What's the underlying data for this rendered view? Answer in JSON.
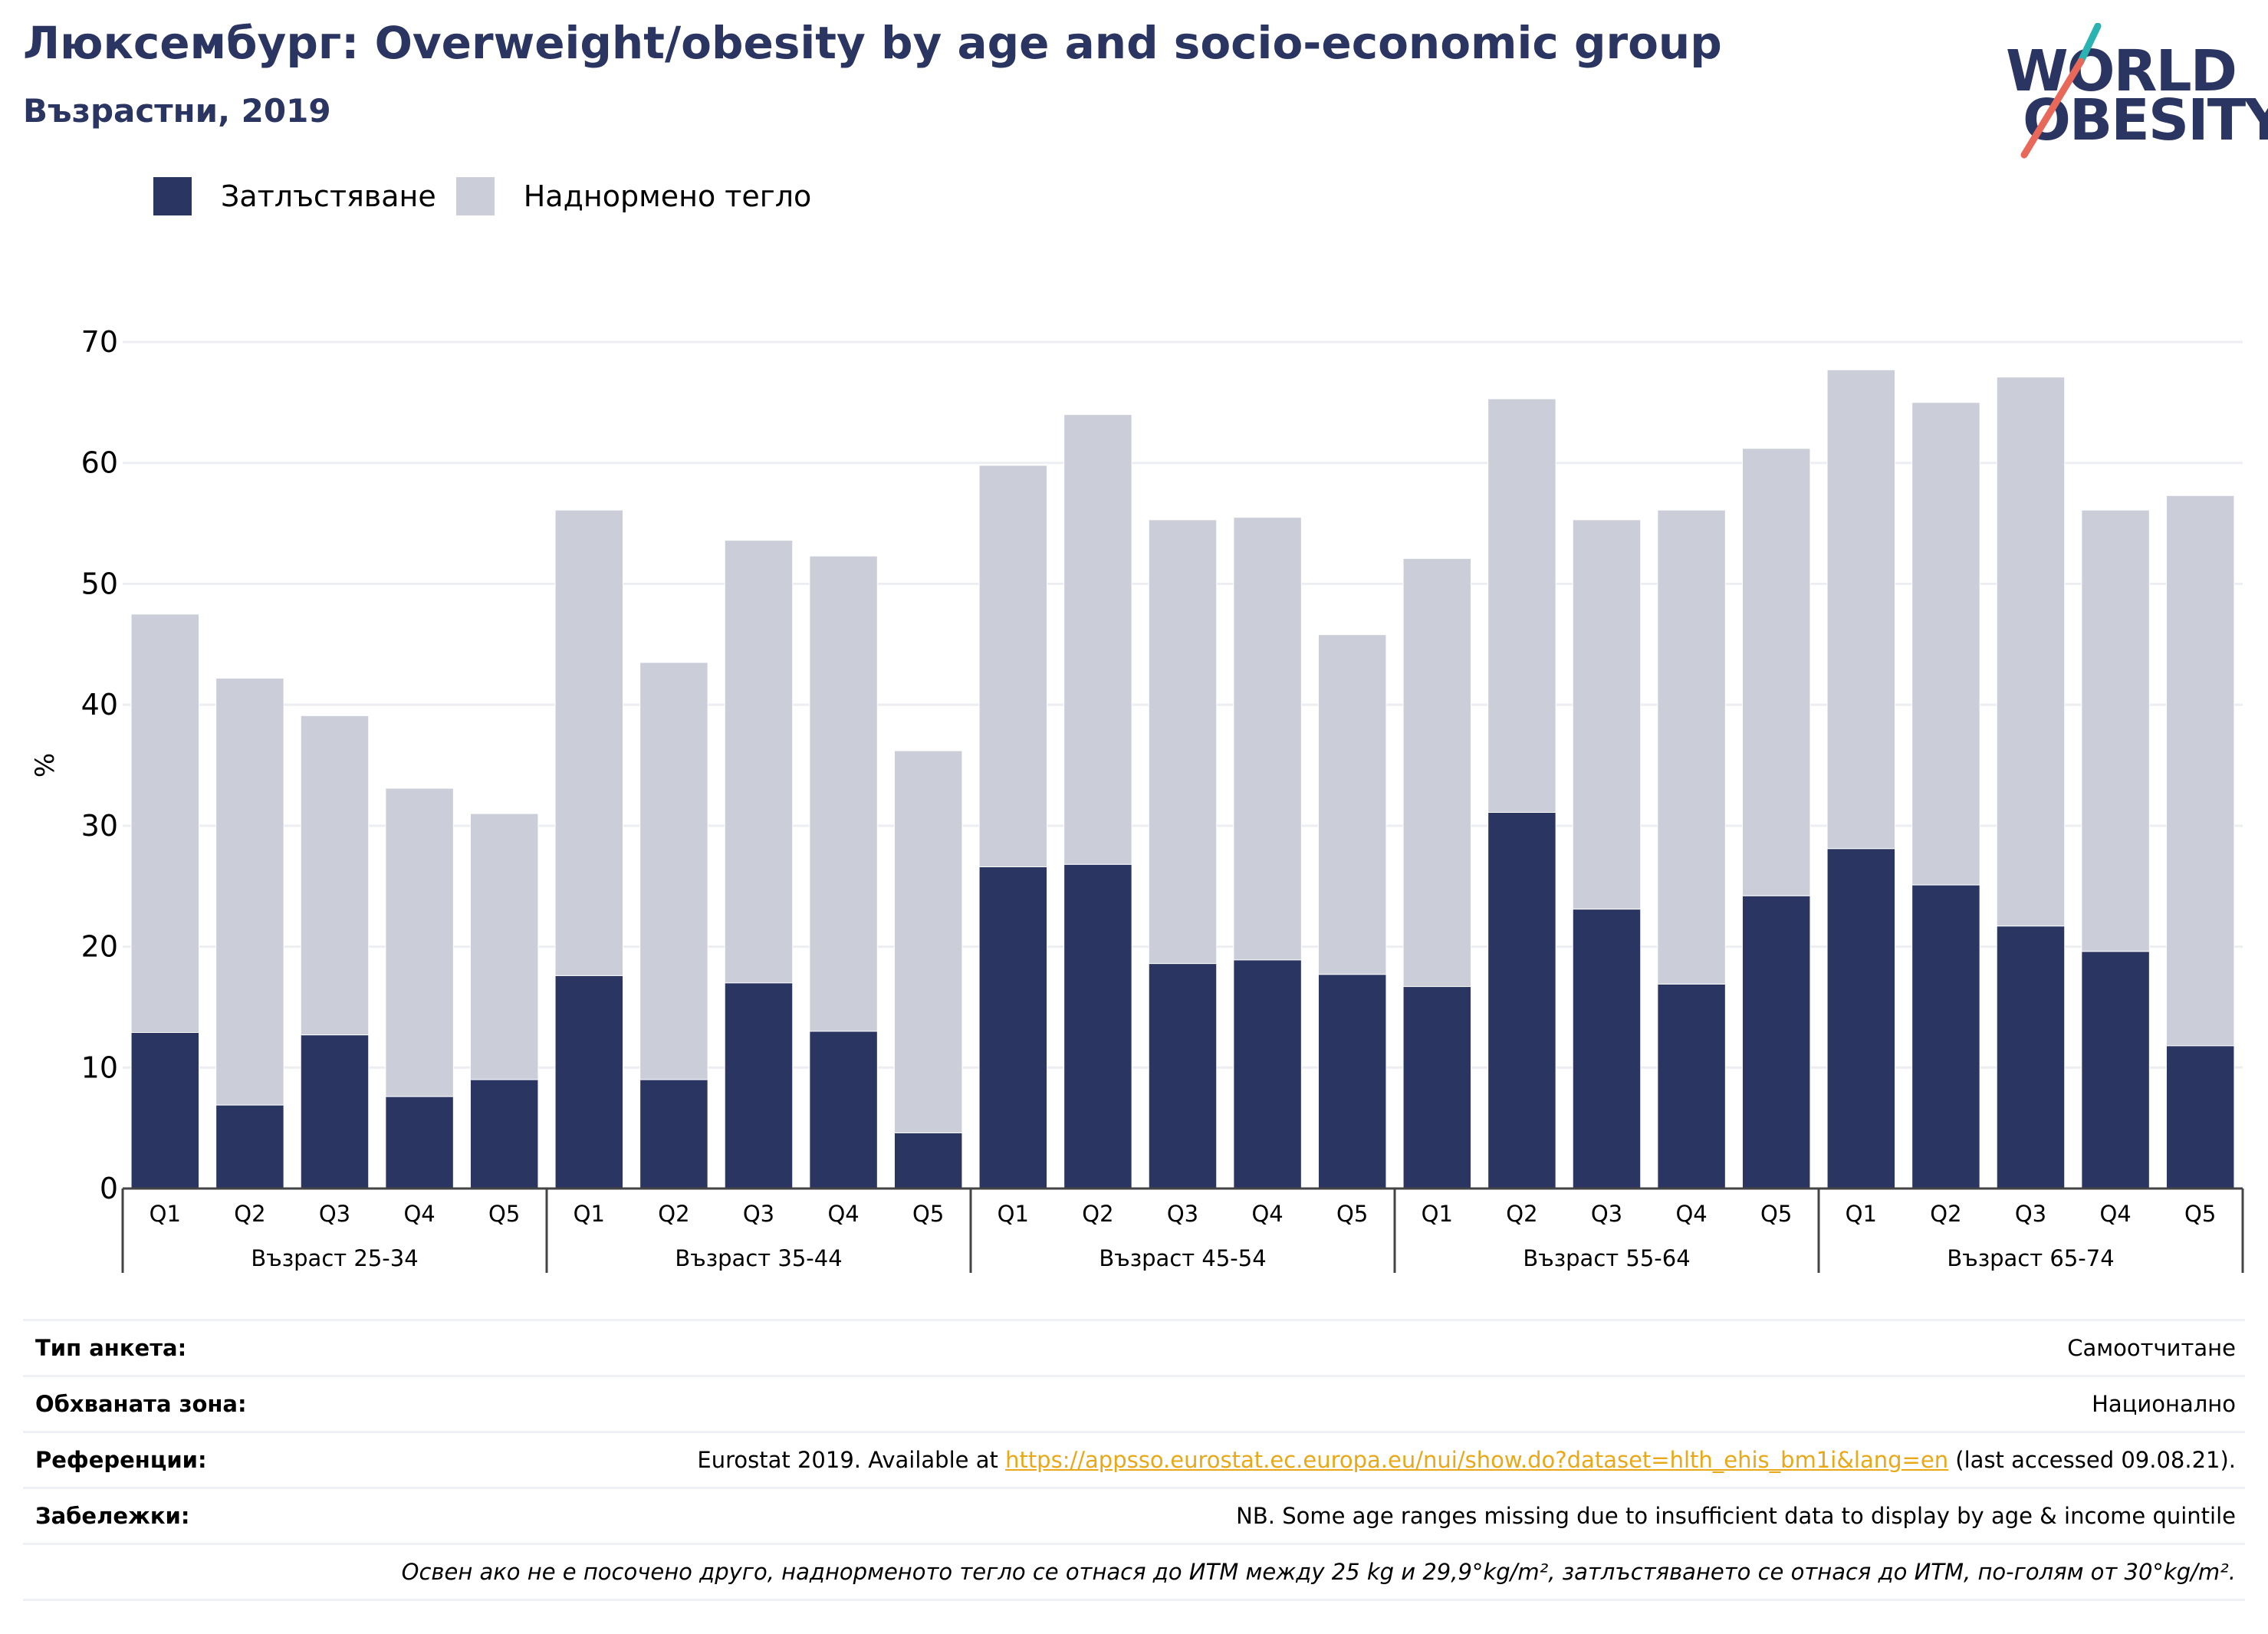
{
  "header": {
    "title": "Люксембург: Overweight/obesity by age and socio-economic group",
    "subtitle": "Възрастни, 2019"
  },
  "logo": {
    "line1": "WORLD",
    "line2": "OBESITY"
  },
  "colors": {
    "obesity": "#2a3561",
    "overweight": "#cbcdd9",
    "title": "#2a3561",
    "link": "#e8a817",
    "logo_teal": "#2ab3b1",
    "logo_coral": "#e8685a"
  },
  "legend": [
    {
      "label": "Затлъстяване",
      "color": "#2a3561"
    },
    {
      "label": "Наднормено тегло",
      "color": "#cbcdd9"
    }
  ],
  "chart_data": {
    "type": "bar",
    "stacked": true,
    "ylabel": "%",
    "ylim": [
      0,
      70
    ],
    "yticks": [
      0,
      10,
      20,
      30,
      40,
      50,
      60,
      70
    ],
    "grid": true,
    "legend_position": "top-left",
    "groups": [
      {
        "label": "Възраст 25-34",
        "categories": [
          "Q1",
          "Q2",
          "Q3",
          "Q4",
          "Q5"
        ]
      },
      {
        "label": "Възраст 35-44",
        "categories": [
          "Q1",
          "Q2",
          "Q3",
          "Q4",
          "Q5"
        ]
      },
      {
        "label": "Възраст 45-54",
        "categories": [
          "Q1",
          "Q2",
          "Q3",
          "Q4",
          "Q5"
        ]
      },
      {
        "label": "Възраст 55-64",
        "categories": [
          "Q1",
          "Q2",
          "Q3",
          "Q4",
          "Q5"
        ]
      },
      {
        "label": "Възраст 65-74",
        "categories": [
          "Q1",
          "Q2",
          "Q3",
          "Q4",
          "Q5"
        ]
      }
    ],
    "series": [
      {
        "name": "Затлъстяване",
        "values": [
          12.9,
          6.9,
          12.7,
          7.6,
          9.0,
          17.6,
          9.0,
          17.0,
          13.0,
          4.6,
          26.6,
          26.8,
          18.6,
          18.9,
          17.7,
          16.7,
          31.1,
          23.1,
          16.9,
          24.2,
          28.1,
          25.1,
          21.7,
          19.6,
          11.8
        ]
      },
      {
        "name": "Наднормено тегло",
        "values": [
          34.6,
          35.3,
          26.4,
          25.5,
          22.0,
          38.5,
          34.5,
          36.6,
          39.3,
          31.6,
          33.2,
          37.2,
          36.7,
          36.6,
          28.1,
          35.4,
          34.2,
          32.2,
          39.2,
          37.0,
          39.6,
          39.9,
          45.4,
          36.5,
          45.5
        ]
      }
    ]
  },
  "info": {
    "survey_label": "Тип анкета:",
    "survey_value": "Самоотчитане",
    "coverage_label": "Обхваната зона:",
    "coverage_value": "Национално",
    "refs_label": "Референции:",
    "refs_prefix": "Eurostat 2019. Available at ",
    "refs_link": "https://appsso.eurostat.ec.europa.eu/nui/show.do?dataset=hlth_ehis_bm1i&lang=en",
    "refs_suffix": " (last accessed 09.08.21).",
    "notes_label": "Забележки:",
    "notes_value": "NB. Some age ranges missing due to insufficient data to display by age & income quintile",
    "footnote": "Освен ако не е посочено друго, наднорменото тегло се отнася до ИТМ между 25 kg и 29,9°kg/m², затлъстяването се отнася до ИТМ, по-голям от 30°kg/m²."
  }
}
